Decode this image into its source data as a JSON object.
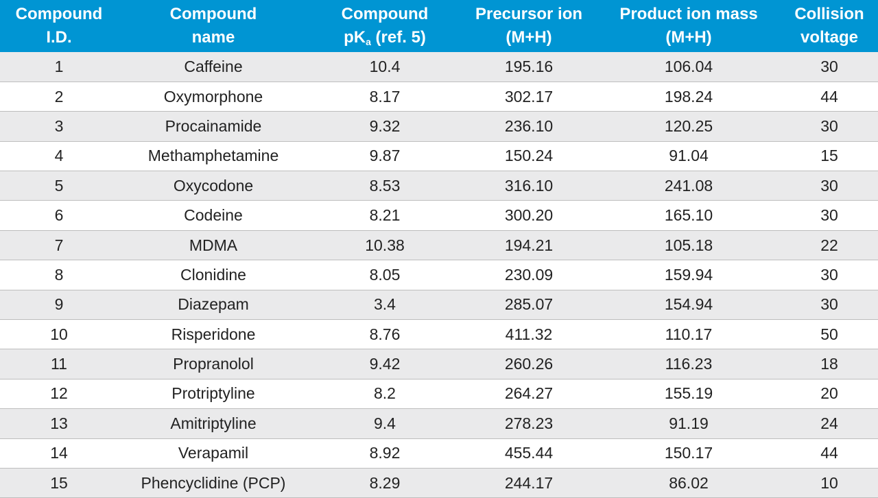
{
  "table": {
    "header": {
      "id": [
        "Compound",
        "I.D."
      ],
      "name": [
        "Compound",
        "name"
      ],
      "pka": {
        "line1": "Compound",
        "pk": "pK",
        "sub": "a",
        "ref": " (ref. 5)"
      },
      "precursor": [
        "Precursor ion",
        "(M+H)"
      ],
      "product": [
        "Product ion mass",
        "(M+H)"
      ],
      "collision": [
        "Collision",
        "voltage"
      ]
    },
    "rows": [
      [
        "1",
        "Caffeine",
        "10.4",
        "195.16",
        "106.04",
        "30"
      ],
      [
        "2",
        "Oxymorphone",
        "8.17",
        "302.17",
        "198.24",
        "44"
      ],
      [
        "3",
        "Procainamide",
        "9.32",
        "236.10",
        "120.25",
        "30"
      ],
      [
        "4",
        "Methamphetamine",
        "9.87",
        "150.24",
        "91.04",
        "15"
      ],
      [
        "5",
        "Oxycodone",
        "8.53",
        "316.10",
        "241.08",
        "30"
      ],
      [
        "6",
        "Codeine",
        "8.21",
        "300.20",
        "165.10",
        "30"
      ],
      [
        "7",
        "MDMA",
        "10.38",
        "194.21",
        "105.18",
        "22"
      ],
      [
        "8",
        "Clonidine",
        "8.05",
        "230.09",
        "159.94",
        "30"
      ],
      [
        "9",
        "Diazepam",
        "3.4",
        "285.07",
        "154.94",
        "30"
      ],
      [
        "10",
        "Risperidone",
        "8.76",
        "411.32",
        "110.17",
        "50"
      ],
      [
        "11",
        "Propranolol",
        "9.42",
        "260.26",
        "116.23",
        "18"
      ],
      [
        "12",
        "Protriptyline",
        "8.2",
        "264.27",
        "155.19",
        "20"
      ],
      [
        "13",
        "Amitriptyline",
        "9.4",
        "278.23",
        "91.19",
        "24"
      ],
      [
        "14",
        "Verapamil",
        "8.92",
        "455.44",
        "150.17",
        "44"
      ],
      [
        "15",
        "Phencyclidine (PCP)",
        "8.29",
        "244.17",
        "86.02",
        "10"
      ]
    ]
  }
}
